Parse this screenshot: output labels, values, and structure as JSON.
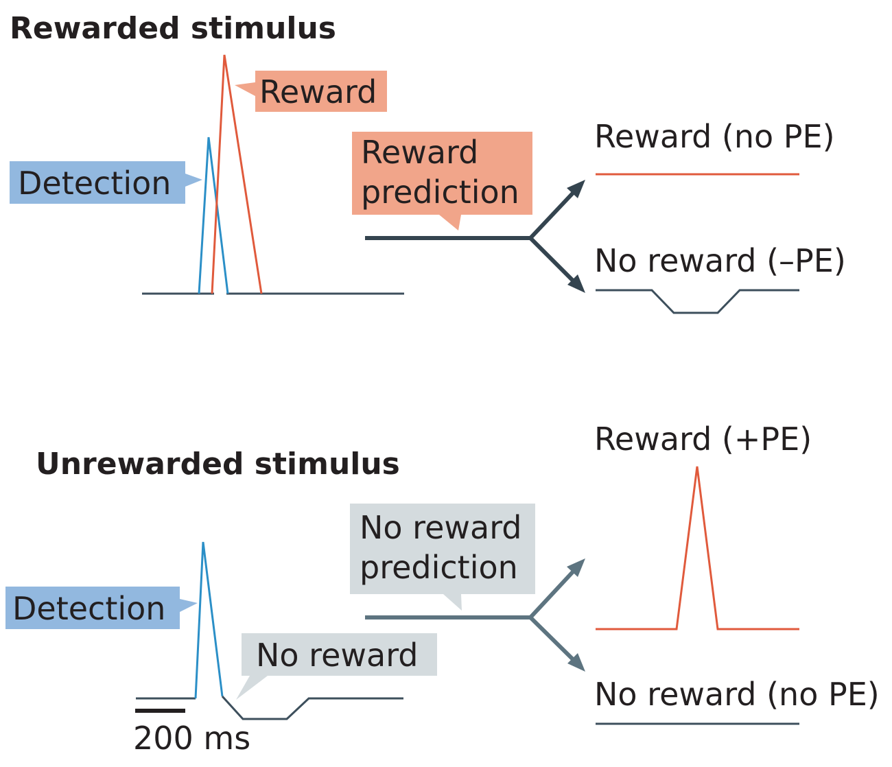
{
  "colors": {
    "reward_red": "#e05a3c",
    "detection_blue": "#2b8fc7",
    "baseline_dark": "#3d4f5c",
    "arrow_dark": "#34444f",
    "arrow_gray": "#5d7480",
    "callout_salmon": "#f1a58a",
    "callout_blue": "#92b8df",
    "callout_gray": "#d4dbde",
    "text": "#231f20"
  },
  "top_panel": {
    "title": "Rewarded stimulus",
    "detection_label": "Detection",
    "reward_label": "Reward",
    "prediction_label_line1": "Reward",
    "prediction_label_line2": "prediction",
    "outcome_reward": "Reward (no PE)",
    "outcome_no_reward": "No reward (–PE)"
  },
  "bottom_panel": {
    "title": "Unrewarded stimulus",
    "detection_label": "Detection",
    "no_reward_label": "No reward",
    "prediction_label_line1": "No reward",
    "prediction_label_line2": "prediction",
    "outcome_reward": "Reward (+PE)",
    "outcome_no_reward": "No reward (no PE)"
  },
  "scale_bar": {
    "label": "200 ms"
  }
}
